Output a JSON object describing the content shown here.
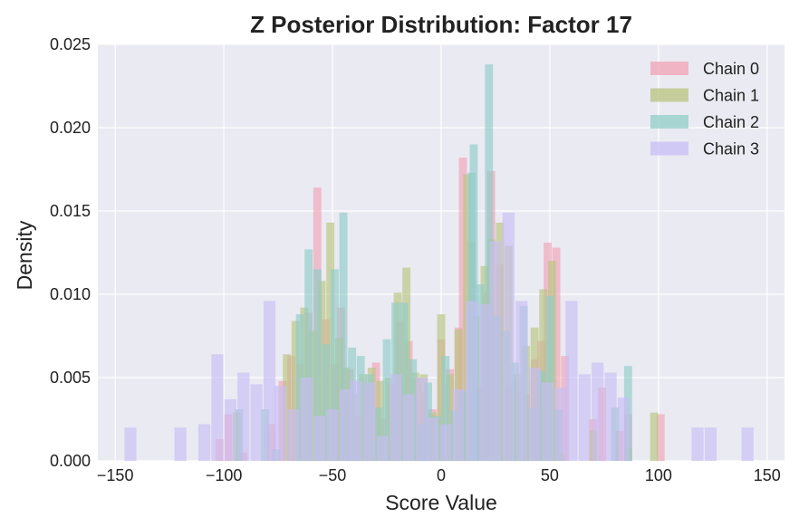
{
  "chart_data": {
    "type": "histogram",
    "title": "Z Posterior Distribution: Factor 17",
    "xlabel": "Score Value",
    "ylabel": "Density",
    "xlim": [
      -158,
      158
    ],
    "ylim": [
      0,
      0.025
    ],
    "xticks": [
      -150,
      -100,
      -50,
      0,
      50,
      100,
      150
    ],
    "xtick_labels": [
      "−150",
      "−100",
      "−50",
      "0",
      "50",
      "100",
      "150"
    ],
    "yticks": [
      0,
      0.005,
      0.01,
      0.015,
      0.02,
      0.025
    ],
    "ytick_labels": [
      "0.000",
      "0.005",
      "0.010",
      "0.015",
      "0.020",
      "0.025"
    ],
    "grid": true,
    "background": "#eaeaf2",
    "legend_position": "top-right",
    "series": [
      {
        "name": "Chain 0",
        "color": "#f0a3b5",
        "bin_width": 3.7,
        "bins": [
          [
            -102,
            0.0013
          ],
          [
            -98,
            0.0028
          ],
          [
            -91,
            0.0005
          ],
          [
            -78,
            0.0022
          ],
          [
            -73,
            0.0048
          ],
          [
            -69,
            0.0063
          ],
          [
            -65,
            0.0058
          ],
          [
            -61,
            0.0089
          ],
          [
            -57,
            0.0164
          ],
          [
            -53,
            0.0085
          ],
          [
            -49,
            0.0058
          ],
          [
            -46,
            0.0092
          ],
          [
            -42,
            0.0055
          ],
          [
            -38,
            0.0027
          ],
          [
            -34,
            0.0047
          ],
          [
            -30,
            0.0059
          ],
          [
            -27,
            0.0025
          ],
          [
            -23,
            0.0046
          ],
          [
            -19,
            0.0084
          ],
          [
            -15,
            0.0072
          ],
          [
            -11,
            0.005
          ],
          [
            -8,
            0.0041
          ],
          [
            -4,
            0.0031
          ],
          [
            0,
            0.0073
          ],
          [
            4,
            0.0055
          ],
          [
            8,
            0.008
          ],
          [
            10,
            0.0182
          ],
          [
            14,
            0.0132
          ],
          [
            18,
            0.0044
          ],
          [
            21,
            0.0101
          ],
          [
            23,
            0.0174
          ],
          [
            27,
            0.0118
          ],
          [
            31,
            0.0045
          ],
          [
            35,
            0.0041
          ],
          [
            39,
            0.004
          ],
          [
            43,
            0.0061
          ],
          [
            46,
            0.0072
          ],
          [
            49,
            0.0131
          ],
          [
            53,
            0.0128
          ],
          [
            57,
            0.0063
          ],
          [
            70,
            0.0025
          ],
          [
            74,
            0.0044
          ],
          [
            82,
            0.0018
          ],
          [
            86,
            0.0028
          ],
          [
            101,
            0.0028
          ]
        ]
      },
      {
        "name": "Chain 1",
        "color": "#b8c47e",
        "bin_width": 3.7,
        "bins": [
          [
            -94,
            0.0029
          ],
          [
            -71,
            0.0064
          ],
          [
            -67,
            0.0084
          ],
          [
            -63,
            0.0092
          ],
          [
            -59,
            0.0078
          ],
          [
            -55,
            0.0108
          ],
          [
            -51,
            0.0143
          ],
          [
            -47,
            0.0074
          ],
          [
            -44,
            0.0056
          ],
          [
            -40,
            0.004
          ],
          [
            -36,
            0.0052
          ],
          [
            -32,
            0.0056
          ],
          [
            -28,
            0.0048
          ],
          [
            -24,
            0.005
          ],
          [
            -20,
            0.0101
          ],
          [
            -16,
            0.0116
          ],
          [
            -12,
            0.0053
          ],
          [
            -8,
            0.0052
          ],
          [
            -4,
            0.0029
          ],
          [
            0,
            0.0088
          ],
          [
            4,
            0.0052
          ],
          [
            8,
            0.0079
          ],
          [
            12,
            0.0172
          ],
          [
            16,
            0.0087
          ],
          [
            20,
            0.0117
          ],
          [
            23,
            0.0133
          ],
          [
            27,
            0.0143
          ],
          [
            31,
            0.0129
          ],
          [
            35,
            0.0052
          ],
          [
            39,
            0.0069
          ],
          [
            43,
            0.008
          ],
          [
            47,
            0.0103
          ],
          [
            51,
            0.012
          ],
          [
            55,
            0.0004
          ],
          [
            70,
            0.0018
          ],
          [
            86,
            0.0008
          ],
          [
            98,
            0.0029
          ]
        ]
      },
      {
        "name": "Chain 2",
        "color": "#8fcdc7",
        "bin_width": 3.7,
        "bins": [
          [
            -93,
            0.0031
          ],
          [
            -81,
            0.0031
          ],
          [
            -76,
            0.0007
          ],
          [
            -65,
            0.0088
          ],
          [
            -61,
            0.0127
          ],
          [
            -57,
            0.0115
          ],
          [
            -53,
            0.007
          ],
          [
            -49,
            0.0115
          ],
          [
            -45,
            0.0149
          ],
          [
            -41,
            0.0068
          ],
          [
            -37,
            0.0063
          ],
          [
            -33,
            0.0052
          ],
          [
            -29,
            0.0032
          ],
          [
            -25,
            0.0073
          ],
          [
            -21,
            0.0095
          ],
          [
            -17,
            0.0095
          ],
          [
            -13,
            0.0061
          ],
          [
            -9,
            0.0022
          ],
          [
            -6,
            0.0047
          ],
          [
            -2,
            0.0027
          ],
          [
            2,
            0.0063
          ],
          [
            6,
            0.003
          ],
          [
            10,
            0.0042
          ],
          [
            14,
            0.0173
          ],
          [
            15,
            0.019
          ],
          [
            18,
            0.0106
          ],
          [
            22,
            0.0238
          ],
          [
            26,
            0.0087
          ],
          [
            30,
            0.0078
          ],
          [
            34,
            0.0059
          ],
          [
            38,
            0.0093
          ],
          [
            42,
            0.0032
          ],
          [
            46,
            0.0054
          ],
          [
            50,
            0.0099
          ],
          [
            54,
            0.0031
          ],
          [
            80,
            0.0032
          ],
          [
            86,
            0.0057
          ]
        ]
      },
      {
        "name": "Chain 3",
        "color": "#c8bdf5",
        "bin_width": 5.5,
        "bins": [
          [
            -143,
            0.002
          ],
          [
            -120,
            0.002
          ],
          [
            -109,
            0.0022
          ],
          [
            -103,
            0.0064
          ],
          [
            -97,
            0.0037
          ],
          [
            -91,
            0.0053
          ],
          [
            -85,
            0.0046
          ],
          [
            -79,
            0.0096
          ],
          [
            -74,
            0.0045
          ],
          [
            -68,
            0.0031
          ],
          [
            -62,
            0.005
          ],
          [
            -56,
            0.0027
          ],
          [
            -50,
            0.0031
          ],
          [
            -44,
            0.0043
          ],
          [
            -39,
            0.0048
          ],
          [
            -33,
            0.0047
          ],
          [
            -27,
            0.0015
          ],
          [
            -21,
            0.0052
          ],
          [
            -15,
            0.004
          ],
          [
            -9,
            0.005
          ],
          [
            -4,
            0.0026
          ],
          [
            2,
            0.0022
          ],
          [
            8,
            0.0043
          ],
          [
            14,
            0.0096
          ],
          [
            20,
            0.0094
          ],
          [
            25,
            0.0132
          ],
          [
            31,
            0.0149
          ],
          [
            37,
            0.0096
          ],
          [
            43,
            0.0056
          ],
          [
            49,
            0.0047
          ],
          [
            55,
            0.0044
          ],
          [
            60,
            0.0096
          ],
          [
            66,
            0.0052
          ],
          [
            72,
            0.0059
          ],
          [
            78,
            0.0053
          ],
          [
            84,
            0.0038
          ],
          [
            118,
            0.002
          ],
          [
            124,
            0.002
          ],
          [
            141,
            0.002
          ]
        ]
      }
    ]
  }
}
